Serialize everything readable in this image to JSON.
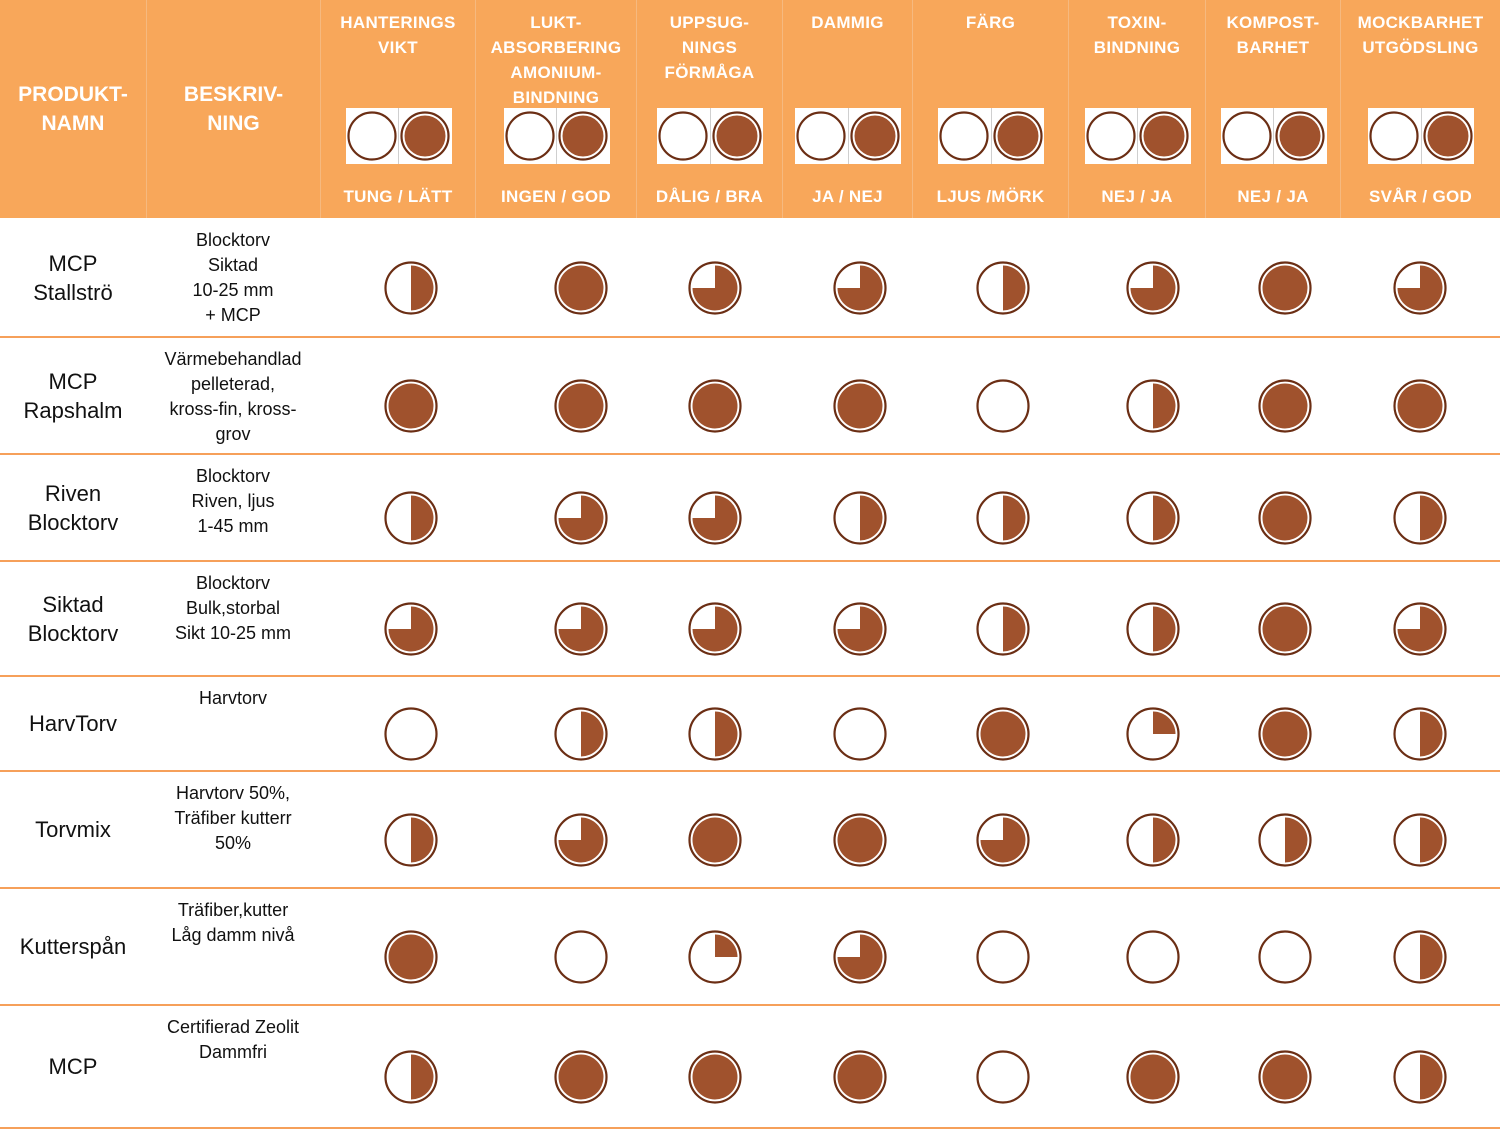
{
  "header": {
    "product_label": "PRODUKT-\nNAMN",
    "description_label": "BESKRIV-\nNING"
  },
  "columns": [
    {
      "title": "HANTERINGS\nVIKT",
      "scale": "TUNG / LÄTT"
    },
    {
      "title": "LUKT-\nABSORBERING\nAMONIUM-\nBINDNING",
      "scale": "INGEN / GOD"
    },
    {
      "title": "UPPSUG-\nNINGS\nFÖRMÅGA",
      "scale": "DÅLIG / BRA"
    },
    {
      "title": "DAMMIG",
      "scale": "JA / NEJ"
    },
    {
      "title": "FÄRG",
      "scale": "LJUS /MÖRK"
    },
    {
      "title": "TOXIN-\nBINDNING",
      "scale": "NEJ / JA"
    },
    {
      "title": "KOMPOST-\nBARHET",
      "scale": "NEJ / JA"
    },
    {
      "title": "MOCKBARHET\nUTGÖDSLING",
      "scale": "SVÅR / GOD"
    }
  ],
  "legend": {
    "left_fill": 0,
    "right_fill": 1
  },
  "rows": [
    {
      "name": "MCP\nStallströ",
      "desc": "Blocktorv\nSiktad\n10-25 mm\n+ MCP",
      "ratings": [
        0.5,
        1,
        0.75,
        0.75,
        0.5,
        0.75,
        1,
        0.75
      ]
    },
    {
      "name": "MCP\nRapshalm",
      "desc": "Värmebehandlad\npelleterad,\nkross-fin, kross-\ngrov",
      "ratings": [
        1,
        1,
        1,
        1,
        0,
        0.5,
        1,
        1
      ]
    },
    {
      "name": "Riven\nBlocktorv",
      "desc": "Blocktorv\nRiven, ljus\n1-45 mm",
      "ratings": [
        0.5,
        0.75,
        0.75,
        0.5,
        0.5,
        0.5,
        1,
        0.5
      ]
    },
    {
      "name": "Siktad\nBlocktorv",
      "desc": "Blocktorv\nBulk,storbal\nSikt 10-25 mm",
      "ratings": [
        0.75,
        0.75,
        0.75,
        0.75,
        0.5,
        0.5,
        1,
        0.75
      ]
    },
    {
      "name": "HarvTorv",
      "desc": "Harvtorv",
      "ratings": [
        0,
        0.5,
        0.5,
        0,
        1,
        0.25,
        1,
        0.5
      ]
    },
    {
      "name": "Torvmix",
      "desc": "Harvtorv 50%,\nTräfiber kutterr\n50%",
      "ratings": [
        0.5,
        0.75,
        1,
        1,
        0.75,
        0.5,
        0.5,
        0.5
      ]
    },
    {
      "name": "Kutterspån",
      "desc": "Träfiber,kutter\nLåg damm nivå",
      "ratings": [
        1,
        0,
        0.25,
        0.75,
        0,
        0,
        0,
        0.5
      ]
    },
    {
      "name": "MCP",
      "desc": "Certifierad Zeolit\nDammfri",
      "ratings": [
        0.5,
        1,
        1,
        1,
        0,
        1,
        1,
        0.5
      ]
    }
  ],
  "colors": {
    "header_bg": "#f8a75a",
    "header_text": "#ffffff",
    "fill": "#a0522d",
    "outline": "#6b2e14",
    "row_border": "#f6a05a"
  }
}
